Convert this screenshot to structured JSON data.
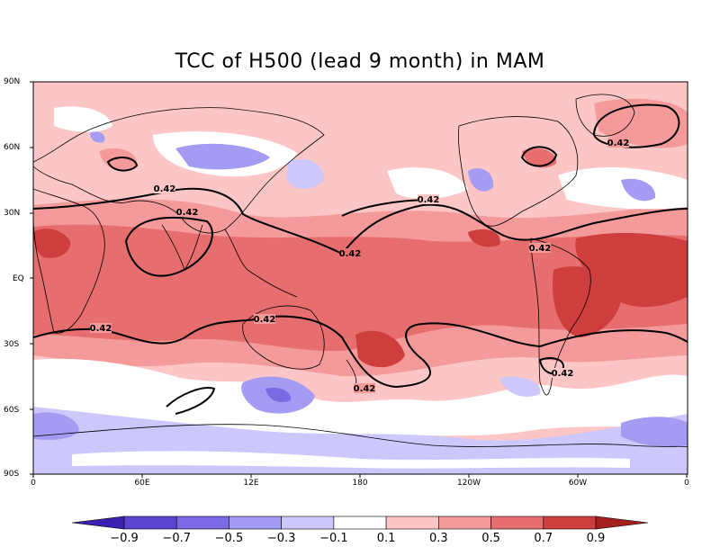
{
  "title": "TCC of H500 (lead 9 month) in MAM",
  "y_ticks": [
    "90N",
    "60N",
    "30N",
    "EQ",
    "30S",
    "60S",
    "90S"
  ],
  "x_ticks": [
    "0",
    "60E",
    "12E",
    "180",
    "120W",
    "60W",
    "0"
  ],
  "colorbar": {
    "labels": [
      "-0.9",
      "-0.7",
      "-0.5",
      "-0.3",
      "-0.1",
      "0.1",
      "0.3",
      "0.5",
      "0.7",
      "0.9"
    ],
    "colors": [
      "#3c1fb0",
      "#5a44d0",
      "#7b6ae4",
      "#a39cf2",
      "#cdc8fb",
      "#ffffff",
      "#fcc6c6",
      "#f49a9a",
      "#e66e6e",
      "#cf3e3e",
      "#a51f1f"
    ]
  },
  "contour_labels": [
    "0.42",
    "0.42",
    "0.42",
    "0.42",
    "0.42",
    "0.42",
    "0.42",
    "0.42",
    "0.42",
    "0.42"
  ],
  "colors": {
    "very_light_red": "#fcc6c6",
    "light_red": "#f49a9a",
    "mid_red": "#e66e6e",
    "dark_red": "#cf3e3e",
    "light_blue": "#cdc8fb",
    "mid_blue": "#a39cf2",
    "dark_blue": "#7b6ae4"
  }
}
